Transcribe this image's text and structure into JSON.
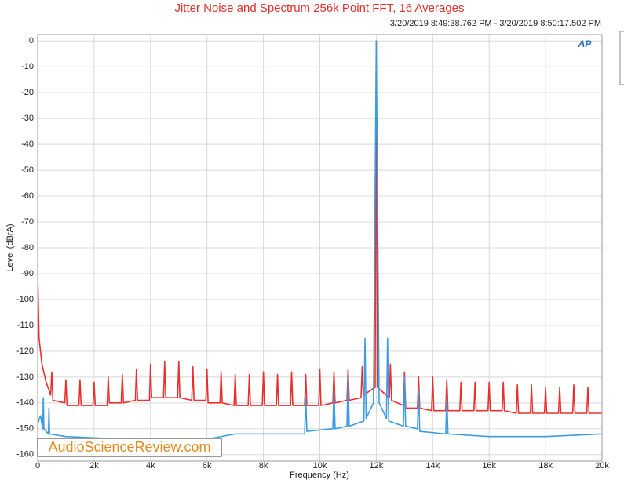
{
  "chart_data": {
    "type": "line",
    "title": "Jitter Noise and Spectrum 256k Point FFT, 16 Averages",
    "subtitle": "3/20/2019 8:49:38.762 PM - 3/20/2019 8:50:17.502 PM",
    "x_label": "Frequency (Hz)",
    "y_label": "Level (dBrA)",
    "watermark": "AudioScienceReview.com",
    "logo": "AP",
    "xlim": [
      0,
      20000
    ],
    "ylim": [
      -162.5,
      2.5
    ],
    "xticks": [
      0,
      {
        "value": 2000,
        "label": "2k"
      },
      {
        "value": 4000,
        "label": "4k"
      },
      {
        "value": 6000,
        "label": "6k"
      },
      {
        "value": 8000,
        "label": "8k"
      },
      {
        "value": 10000,
        "label": "10k"
      },
      {
        "value": 12000,
        "label": "12k"
      },
      {
        "value": 14000,
        "label": "14k"
      },
      {
        "value": 16000,
        "label": "16k"
      },
      {
        "value": 18000,
        "label": "18k"
      },
      {
        "value": 20000,
        "label": "20k"
      }
    ],
    "yticks": [
      0,
      -10,
      -20,
      -30,
      -40,
      -50,
      -60,
      -70,
      -80,
      -90,
      -100,
      -110,
      -120,
      -130,
      -140,
      -150,
      -160
    ],
    "grid": true,
    "series": [
      {
        "color": "#e8312f",
        "x": [
          0,
          50,
          150,
          300,
          460,
          500,
          540,
          960,
          1000,
          1040,
          1460,
          1500,
          1540,
          1960,
          2000,
          2040,
          2460,
          2500,
          2540,
          2960,
          3000,
          3040,
          3460,
          3500,
          3540,
          3960,
          4000,
          4040,
          4460,
          4500,
          4540,
          4960,
          5000,
          5040,
          5460,
          5500,
          5540,
          5960,
          6000,
          6040,
          6460,
          6500,
          6540,
          6960,
          7000,
          7040,
          7460,
          7500,
          7540,
          7960,
          8000,
          8040,
          8460,
          8500,
          8540,
          8960,
          9000,
          9040,
          9460,
          9500,
          9540,
          9960,
          10000,
          10040,
          10460,
          10500,
          10540,
          10960,
          11000,
          11040,
          11460,
          11500,
          11540,
          11960,
          12000,
          12040,
          12460,
          12500,
          12540,
          12960,
          13000,
          13040,
          13460,
          13500,
          13540,
          13960,
          14000,
          14040,
          14460,
          14500,
          14540,
          14960,
          15000,
          15040,
          15460,
          15500,
          15540,
          15960,
          16000,
          16040,
          16460,
          16500,
          16540,
          16960,
          17000,
          17040,
          17460,
          17500,
          17540,
          17960,
          18000,
          18040,
          18460,
          18500,
          18540,
          18960,
          19000,
          19040,
          19460,
          19500,
          19540,
          20000
        ],
        "values": [
          -90,
          -115,
          -125,
          -132,
          -137,
          -128,
          -139,
          -140,
          -131,
          -141,
          -141,
          -131,
          -141,
          -141,
          -132,
          -141,
          -141,
          -130,
          -140,
          -140,
          -129,
          -140,
          -139,
          -127,
          -139,
          -139,
          -125,
          -138,
          -138,
          -124,
          -138,
          -138,
          -124,
          -138,
          -139,
          -126,
          -139,
          -139,
          -127,
          -140,
          -140,
          -128,
          -140,
          -141,
          -129,
          -141,
          -141,
          -129,
          -141,
          -141,
          -128,
          -141,
          -141,
          -129,
          -141,
          -141,
          -128,
          -141,
          -141,
          -129,
          -141,
          -141,
          -127,
          -141,
          -140,
          -128,
          -140,
          -139,
          -127,
          -139,
          -138,
          -126,
          -137,
          -134,
          0,
          -134,
          -138,
          -125,
          -139,
          -141,
          -128,
          -142,
          -142,
          -130,
          -142,
          -143,
          -130,
          -143,
          -143,
          -131,
          -143,
          -143,
          -132,
          -143,
          -143,
          -132,
          -143,
          -143,
          -132,
          -143,
          -143,
          -132,
          -143,
          -144,
          -133,
          -144,
          -144,
          -133,
          -144,
          -144,
          -134,
          -144,
          -144,
          -134,
          -144,
          -144,
          -133,
          -144,
          -144,
          -134,
          -144,
          -144
        ]
      },
      {
        "color": "#3d9be0",
        "x": [
          0,
          100,
          180,
          200,
          220,
          380,
          400,
          420,
          1000,
          3000,
          6000,
          7000,
          9000,
          9460,
          9500,
          9540,
          10460,
          10500,
          10540,
          10960,
          11000,
          11040,
          11560,
          11600,
          11640,
          11900,
          12000,
          12100,
          12360,
          12400,
          12440,
          12960,
          13000,
          13040,
          13460,
          13500,
          13540,
          14460,
          14500,
          14540,
          16000,
          18000,
          20000
        ],
        "values": [
          -148,
          -145,
          -150,
          -138,
          -150,
          -152,
          -142,
          -152,
          -153,
          -154,
          -154,
          -152,
          -152,
          -152,
          -138,
          -151,
          -150,
          -135,
          -150,
          -149,
          -130,
          -149,
          -147,
          -115,
          -146,
          -140,
          0,
          -140,
          -146,
          -115,
          -147,
          -149,
          -130,
          -149,
          -150,
          -135,
          -151,
          -152,
          -138,
          -152,
          -153,
          -153,
          -152
        ]
      }
    ]
  }
}
